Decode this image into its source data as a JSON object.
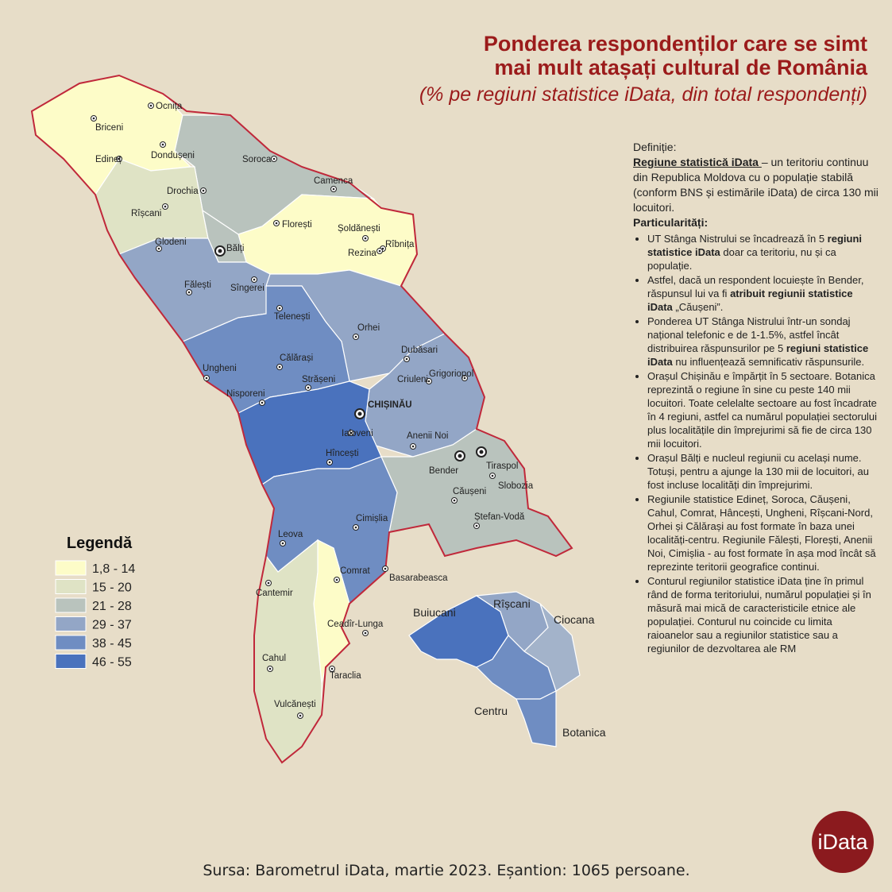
{
  "header": {
    "title": [
      "Ponderea respondenților care se simt",
      "mai mult atașați cultural de România"
    ],
    "subtitle": "(% pe regiuni statistice iData, din total respondenți)"
  },
  "legend": {
    "title": "Legendă",
    "items": [
      {
        "label": "1,8 - 14",
        "color": "#fdfcc8"
      },
      {
        "label": "15 - 20",
        "color": "#dfe3c5"
      },
      {
        "label": "21 - 28",
        "color": "#b9c3bd"
      },
      {
        "label": "29 - 37",
        "color": "#93a6c6"
      },
      {
        "label": "38 - 45",
        "color": "#6f8dc2"
      },
      {
        "label": "46 - 55",
        "color": "#4a72bd"
      }
    ]
  },
  "cities": [
    "Ocnița",
    "Briceni",
    "Edineț",
    "Dondușeni",
    "Soroca",
    "Camenca",
    "Drochia",
    "Rîșcani",
    "Florești",
    "Șoldănești",
    "Rîbnița",
    "Glodeni",
    "Bălți",
    "Rezina",
    "Fălești",
    "Sîngerei",
    "Telenești",
    "Orhei",
    "Dubăsari",
    "Călărași",
    "Ungheni",
    "Grigoriopol",
    "Criuleni",
    "Strășeni",
    "Nisporeni",
    "CHIȘINĂU",
    "Ialoveni",
    "Anenii Noi",
    "Hîncești",
    "Tiraspol",
    "Bender",
    "Slobozia",
    "Căușeni",
    "Cimișlia",
    "Ștefan-Vodă",
    "Leova",
    "Comrat",
    "Basarabeasca",
    "Cantemir",
    "Ceadîr-Lunga",
    "Cahul",
    "Taraclia",
    "Vulcănești"
  ],
  "sectors": [
    "Buiucani",
    "Rîșcani",
    "Ciocana",
    "Centru",
    "Botanica"
  ],
  "definition": {
    "label": "Definiție:",
    "term": "Regiune statistică iData ",
    "text": "– un teritoriu continuu din Republica Moldova cu o populație stabilă (conform BNS și estimările iData) de circa 130 mii locuitori."
  },
  "particularities": {
    "title": "Particularități:",
    "bullets": [
      [
        "UT Stânga Nistrului se încadrează în 5 ",
        "regiuni statistice iData",
        " doar ca teritoriu, nu și ca populație."
      ],
      [
        "Astfel, dacă un respondent locuiește în Bender, răspunsul lui va fi ",
        "atribuit regiunii statistice iData",
        " „Căușeni”."
      ],
      [
        "Ponderea UT Stânga Nistrului într-un sondaj național telefonic e de 1-1.5%, astfel încât distribuirea răspunsurilor pe 5 ",
        "regiuni statistice iData",
        " nu influențează semnificativ răspunsurile."
      ],
      [
        "Orașul Chișinău e împărțit în 5 sectoare. Botanica reprezintă o regiune în sine cu peste 140 mii locuitori. Toate celelalte sectoare au fost încadrate în 4 regiuni, astfel ca numărul populației sectorului plus localitățile din împrejurimi să fie de circa 130 mii locuitori."
      ],
      [
        "Orașul Bălți e nucleul regiunii cu același nume.  Totuși, pentru a ajunge la 130 mii de locuitori, au fost incluse localități din împrejurimi."
      ],
      [
        "Regiunile statistice Edineț, Soroca, Căușeni, Cahul, Comrat, Hâncești, Ungheni, Rîșcani-Nord, Orhei și Călărași au fost formate în baza unei localități-centru. Regiunile Fălești, Florești, Anenii Noi, Cimișlia  - au fost formate în așa mod încât să reprezinte teritorii geografice continui."
      ],
      [
        "Conturul regiunilor statistice iData ține în primul rând de forma teritoriului, numărul populației și în măsură mai mică de caracteristicile etnice ale populației. Conturul nu coincide cu limita raioanelor sau a regiunilor statistice sau a regiunilor de dezvoltarea ale RM"
      ]
    ]
  },
  "source": "Sursa: Barometrul iData, martie 2023. Eșantion: 1065 persoane.",
  "logo": "iData"
}
